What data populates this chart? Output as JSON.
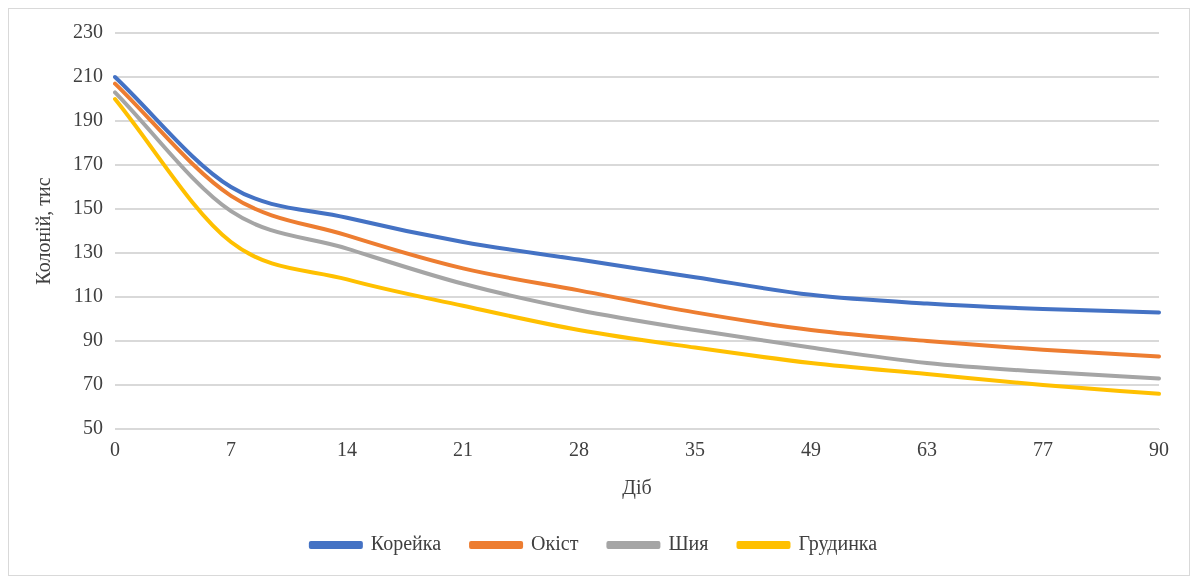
{
  "chart_data": {
    "type": "line",
    "xlabel": "Діб",
    "ylabel": "Колоній, тис",
    "categories": [
      "0",
      "7",
      "14",
      "21",
      "28",
      "35",
      "49",
      "63",
      "77",
      "90"
    ],
    "series": [
      {
        "name": "Корейка",
        "color": "#4472c4",
        "values": [
          210,
          160,
          146,
          135,
          127,
          119,
          111,
          107,
          104.5,
          103
        ]
      },
      {
        "name": "Окіст",
        "color": "#ed7d31",
        "values": [
          207,
          156,
          138,
          123,
          113,
          103,
          95,
          90,
          86,
          83
        ]
      },
      {
        "name": "Шия",
        "color": "#a5a5a5",
        "values": [
          203,
          149,
          132,
          116,
          104,
          95,
          87,
          80,
          76,
          73
        ]
      },
      {
        "name": "Грудинка",
        "color": "#ffc000",
        "values": [
          200,
          135,
          118,
          106,
          95,
          87,
          80,
          75,
          70,
          66
        ]
      }
    ],
    "ylim": [
      50,
      230
    ],
    "yticks": [
      50,
      70,
      90,
      110,
      130,
      150,
      170,
      190,
      210,
      230
    ],
    "grid": "y",
    "legend": "bottom",
    "marker": "none",
    "line_style": "solid"
  }
}
